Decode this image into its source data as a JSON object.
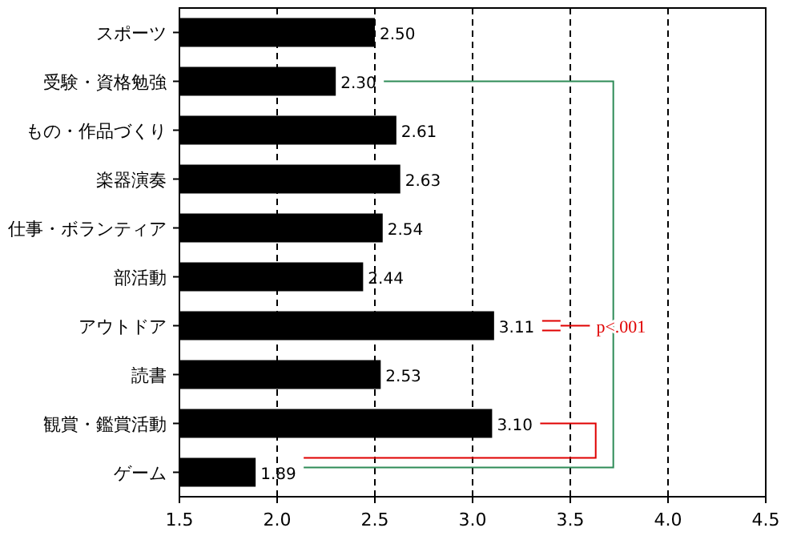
{
  "chart_data": {
    "type": "bar",
    "orientation": "horizontal",
    "categories": [
      "スポーツ",
      "受験・資格勉強",
      "もの・作品づくり",
      "楽器演奏",
      "仕事・ボランティア",
      "部活動",
      "アウトドア",
      "読書",
      "観賞・鑑賞活動",
      "ゲーム"
    ],
    "values": [
      2.5,
      2.3,
      2.61,
      2.63,
      2.54,
      2.44,
      3.11,
      2.53,
      3.1,
      1.89
    ],
    "value_labels": [
      "2.50",
      "2.30",
      "2.61",
      "2.63",
      "2.54",
      "2.44",
      "3.11",
      "2.53",
      "3.10",
      "1.89"
    ],
    "color": "#000000",
    "xlim": [
      1.5,
      4.5
    ],
    "xticks": [
      {
        "value": 1.5,
        "label": "1.5"
      },
      {
        "value": 2,
        "label": "2.0"
      },
      {
        "value": 2.5,
        "label": "2.5"
      },
      {
        "value": 3,
        "label": "3.0"
      },
      {
        "value": 3.5,
        "label": "3.5"
      },
      {
        "value": 4,
        "label": "4.0"
      },
      {
        "value": 4.5,
        "label": "4.5"
      }
    ],
    "grid": "x",
    "annotations": [
      "p<.001"
    ]
  }
}
